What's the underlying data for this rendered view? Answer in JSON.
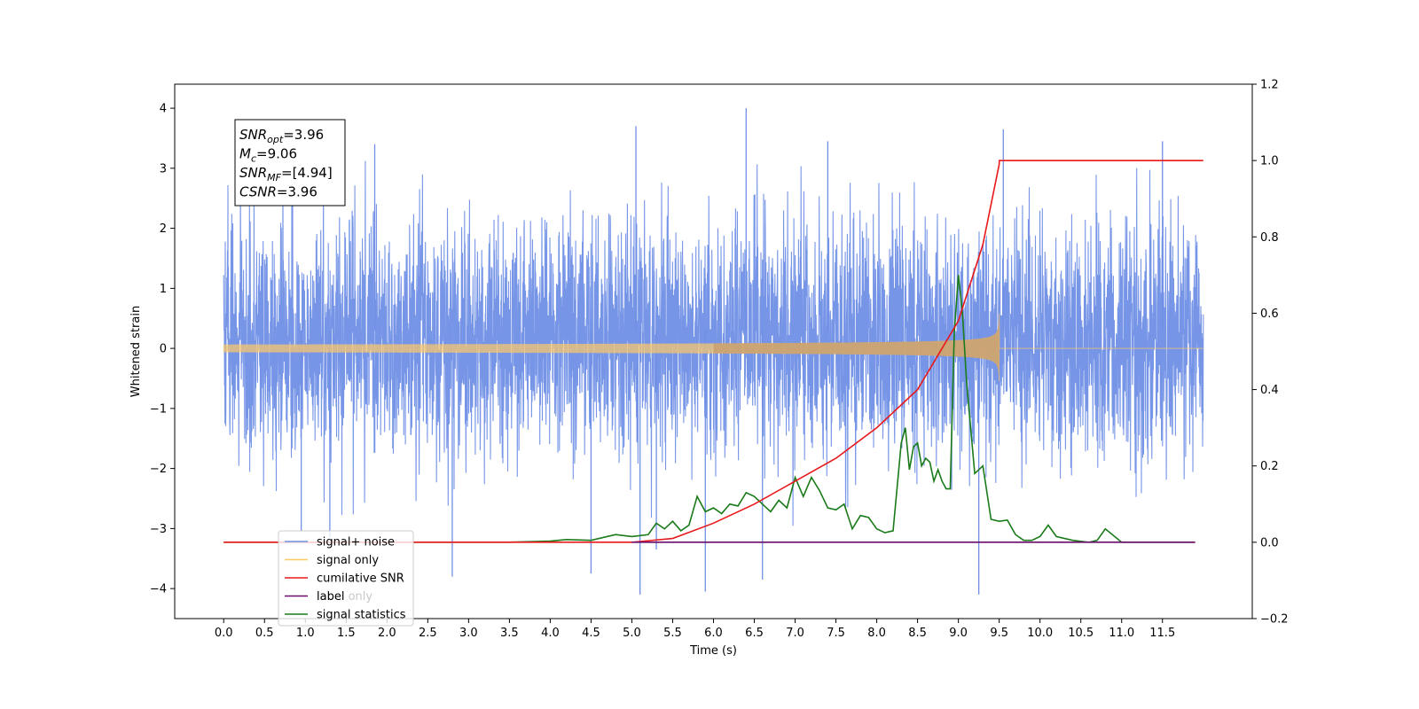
{
  "chart_data": {
    "type": "line",
    "xlabel": "Time (s)",
    "ylabel": "Whitened strain",
    "xlim": [
      -0.6,
      12.6
    ],
    "ylim": [
      -4.5,
      4.4
    ],
    "y2lim": [
      -0.2,
      1.2
    ],
    "xticks": [
      "0.0",
      "0.5",
      "1.0",
      "1.5",
      "2.0",
      "2.5",
      "3.0",
      "3.5",
      "4.0",
      "4.5",
      "5.0",
      "5.5",
      "6.0",
      "6.5",
      "7.0",
      "7.5",
      "8.0",
      "8.5",
      "9.0",
      "9.5",
      "10.0",
      "10.5",
      "11.0",
      "11.5"
    ],
    "yticks": [
      "4",
      "3",
      "2",
      "1",
      "0",
      "−1",
      "−2",
      "−3",
      "−4"
    ],
    "y2ticks": [
      "1.2",
      "1.0",
      "0.8",
      "0.6",
      "0.4",
      "0.2",
      "0.0",
      "−0.2"
    ],
    "info_box": {
      "lines": [
        {
          "base": "SNR",
          "sub": "opt",
          "value": "=3.96"
        },
        {
          "base": "M",
          "sub": "c",
          "value": "=9.06"
        },
        {
          "base": "SNR",
          "sub": "MF",
          "value": "=[4.94]"
        },
        {
          "base": "CSNR",
          "sub": "",
          "value": "=3.96"
        }
      ]
    },
    "legend": {
      "placement": "lower-left",
      "entries": [
        {
          "label": "signal+ noise",
          "color": "#6f8fe6"
        },
        {
          "label": "signal only",
          "color": "#ffc966"
        },
        {
          "label": "cumilative SNR",
          "color": "#e8181b"
        },
        {
          "label": "label",
          "color": "#6a0a6a"
        },
        {
          "label": "signal statistics",
          "color": "#1a7a1a"
        }
      ],
      "obscured_label": "label only"
    },
    "series": [
      {
        "name": "signal+ noise",
        "axis": "left",
        "color": "#6f8fe6",
        "kind": "noise",
        "x_range": [
          0.0,
          12.0
        ],
        "band": [
          -2.0,
          2.6
        ],
        "notable_spikes": [
          {
            "x": 0.95,
            "y": -3.05
          },
          {
            "x": 1.3,
            "y": -3.15
          },
          {
            "x": 1.85,
            "y": 3.4
          },
          {
            "x": 2.8,
            "y": -3.8
          },
          {
            "x": 4.5,
            "y": -3.75
          },
          {
            "x": 5.05,
            "y": 3.7
          },
          {
            "x": 5.1,
            "y": -4.1
          },
          {
            "x": 5.3,
            "y": -3.35
          },
          {
            "x": 5.9,
            "y": -4.05
          },
          {
            "x": 6.4,
            "y": 4.0
          },
          {
            "x": 6.6,
            "y": -3.85
          },
          {
            "x": 7.4,
            "y": 3.45
          },
          {
            "x": 9.25,
            "y": -4.1
          },
          {
            "x": 9.55,
            "y": 3.65
          },
          {
            "x": 11.5,
            "y": 3.45
          }
        ]
      },
      {
        "name": "signal only",
        "axis": "left",
        "color": "#ffc966",
        "kind": "chirp",
        "x_range": [
          0.0,
          12.0
        ],
        "merger_time": 9.5,
        "peak_amplitude": 0.58
      },
      {
        "name": "cumilative SNR",
        "axis": "right",
        "color": "#e8181b",
        "x": [
          0.0,
          5.0,
          5.5,
          6.0,
          6.5,
          7.0,
          7.5,
          8.0,
          8.5,
          9.0,
          9.3,
          9.5,
          9.501,
          12.0
        ],
        "y": [
          0.0,
          0.0,
          0.01,
          0.05,
          0.1,
          0.16,
          0.22,
          0.3,
          0.4,
          0.58,
          0.78,
          0.99,
          1.0,
          1.0
        ]
      },
      {
        "name": "label",
        "axis": "right",
        "color": "#6a0a6a",
        "x": [
          5.0,
          11.9
        ],
        "y": [
          0.0,
          0.0
        ]
      },
      {
        "name": "signal statistics",
        "axis": "right",
        "color": "#1a7a1a",
        "x": [
          0.0,
          3.5,
          4.0,
          4.2,
          4.5,
          4.8,
          5.0,
          5.2,
          5.3,
          5.4,
          5.5,
          5.6,
          5.7,
          5.8,
          5.9,
          6.0,
          6.1,
          6.2,
          6.3,
          6.4,
          6.5,
          6.6,
          6.7,
          6.8,
          6.9,
          7.0,
          7.1,
          7.2,
          7.3,
          7.4,
          7.5,
          7.6,
          7.7,
          7.8,
          7.9,
          8.0,
          8.1,
          8.2,
          8.3,
          8.35,
          8.4,
          8.45,
          8.5,
          8.55,
          8.6,
          8.65,
          8.7,
          8.75,
          8.8,
          8.85,
          8.9,
          8.95,
          9.0,
          9.05,
          9.1,
          9.2,
          9.3,
          9.4,
          9.5,
          9.6,
          9.7,
          9.8,
          9.9,
          10.0,
          10.1,
          10.2,
          10.4,
          10.6,
          10.7,
          10.8,
          11.0,
          11.2,
          11.9
        ],
        "y": [
          0.0,
          0.0,
          0.003,
          0.007,
          0.005,
          0.02,
          0.015,
          0.02,
          0.05,
          0.035,
          0.055,
          0.03,
          0.045,
          0.12,
          0.08,
          0.09,
          0.075,
          0.1,
          0.095,
          0.13,
          0.12,
          0.1,
          0.08,
          0.11,
          0.09,
          0.17,
          0.12,
          0.17,
          0.135,
          0.09,
          0.085,
          0.1,
          0.035,
          0.07,
          0.065,
          0.035,
          0.025,
          0.03,
          0.26,
          0.3,
          0.19,
          0.25,
          0.26,
          0.2,
          0.22,
          0.21,
          0.16,
          0.19,
          0.16,
          0.14,
          0.14,
          0.55,
          0.7,
          0.6,
          0.42,
          0.18,
          0.2,
          0.06,
          0.055,
          0.058,
          0.02,
          0.005,
          0.005,
          0.015,
          0.045,
          0.015,
          0.005,
          0.0,
          0.005,
          0.035,
          0.0,
          0.0,
          0.0
        ]
      }
    ]
  }
}
